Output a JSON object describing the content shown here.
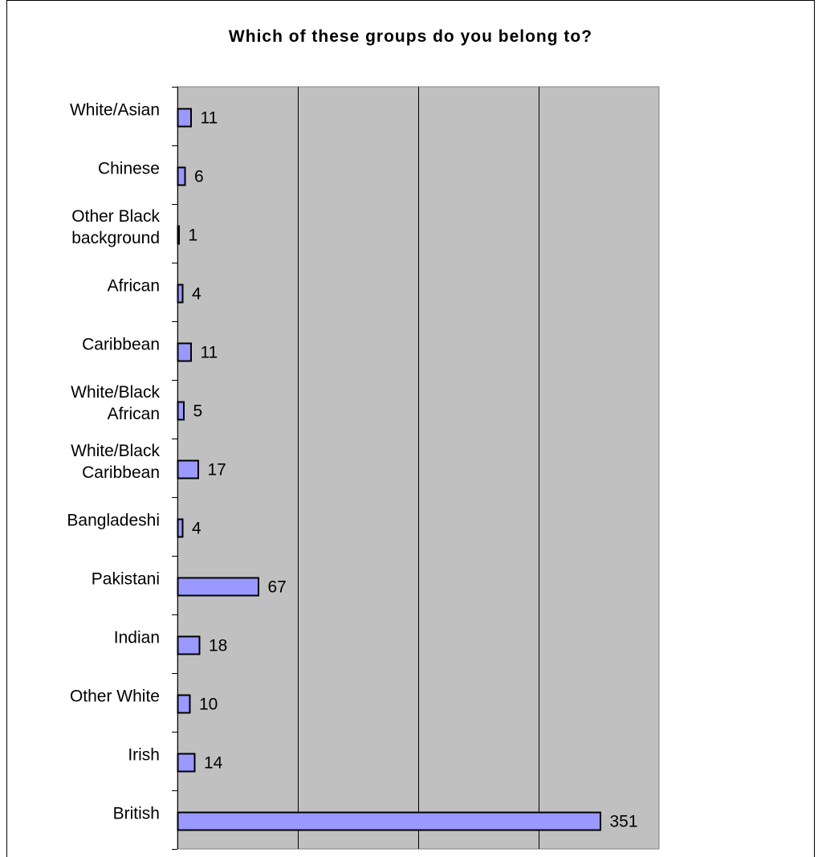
{
  "chart_data": {
    "type": "bar",
    "orientation": "horizontal",
    "title": "Which of these groups do you belong to?",
    "categories": [
      "White/Asian",
      "Chinese",
      "Other Black background",
      "African",
      "Caribbean",
      "White/Black African",
      "White/Black Caribbean",
      "Bangladeshi",
      "Pakistani",
      "Indian",
      "Other White",
      "Irish",
      "British"
    ],
    "category_lines": [
      [
        "White/Asian"
      ],
      [
        "Chinese"
      ],
      [
        "Other Black",
        "background"
      ],
      [
        "African"
      ],
      [
        "Caribbean"
      ],
      [
        "White/Black",
        "African"
      ],
      [
        "White/Black",
        "Caribbean"
      ],
      [
        "Bangladeshi"
      ],
      [
        "Pakistani"
      ],
      [
        "Indian"
      ],
      [
        "Other White"
      ],
      [
        "Irish"
      ],
      [
        "British"
      ]
    ],
    "values": [
      11,
      6,
      1,
      4,
      11,
      5,
      17,
      4,
      67,
      18,
      10,
      14,
      351
    ],
    "xlim": [
      0,
      400
    ],
    "x_gridline_step": 100,
    "grid": true,
    "legend": "none",
    "colors": {
      "bar_fill": "#9999ff",
      "bar_stroke": "#000000",
      "plot_background": "#c0c0c0",
      "gridline": "#000000"
    }
  }
}
